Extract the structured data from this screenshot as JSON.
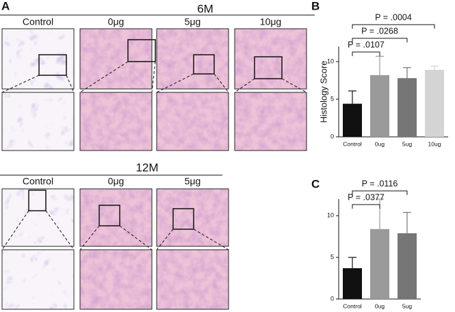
{
  "panels": {
    "label": "A",
    "groups": [
      {
        "title": "6M",
        "columns": [
          "Control",
          "0μg",
          "5μg",
          "10μg"
        ]
      },
      {
        "title": "12M",
        "columns": [
          "Control",
          "0μg",
          "5μg"
        ]
      }
    ]
  },
  "chart_data": [
    {
      "type": "bar",
      "label": "B",
      "y_label": "Histology Score",
      "categories": [
        "Control",
        "0ug",
        "5ug",
        "10ug"
      ],
      "values": [
        4.4,
        8.2,
        7.8,
        8.9
      ],
      "errors": [
        1.7,
        2.5,
        1.4,
        0.5
      ],
      "colors": [
        "#111111",
        "#9a9a9a",
        "#767676",
        "#d4d4d4"
      ],
      "ylim": [
        0,
        12
      ],
      "yticks": [
        0,
        5,
        10
      ],
      "annotations": [
        {
          "text": "P = .0004",
          "between": [
            "Control",
            "10ug"
          ]
        },
        {
          "text": "P = .0268",
          "between": [
            "Control",
            "5ug"
          ]
        },
        {
          "text": "P = .0107",
          "between": [
            "Control",
            "0ug"
          ]
        }
      ]
    },
    {
      "type": "bar",
      "label": "C",
      "categories": [
        "Control",
        "0ug",
        "5ug"
      ],
      "values": [
        3.7,
        8.4,
        7.9
      ],
      "errors": [
        1.3,
        3.6,
        2.5
      ],
      "colors": [
        "#111111",
        "#9a9a9a",
        "#767676"
      ],
      "ylim": [
        0,
        12
      ],
      "yticks": [
        0,
        5,
        10
      ],
      "annotations": [
        {
          "text": "P = .0116",
          "between": [
            "Control",
            "5ug"
          ]
        },
        {
          "text": "P = .0377",
          "between": [
            "Control",
            "0ug"
          ]
        }
      ]
    }
  ]
}
